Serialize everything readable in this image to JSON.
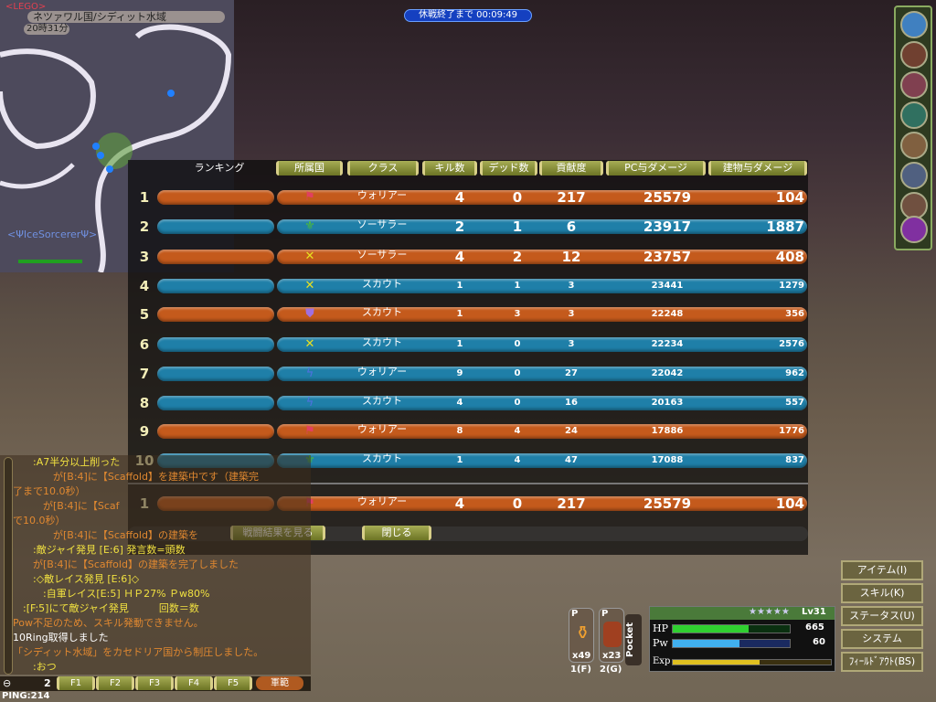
{
  "minimap": {
    "guild": "<LEGO>",
    "location": "ネツァワル国/シディット水域",
    "time": "20時31分",
    "player_label": "<ΨIceSorcererΨ>"
  },
  "timer": "休戦終了まで 00:09:49",
  "ranking": {
    "headers": {
      "rank": "ランキング",
      "nation": "所属国",
      "class": "クラス",
      "kills": "キル数",
      "deaths": "デッド数",
      "contribution": "貢献度",
      "pc_damage": "PC与ダメージ",
      "building_damage": "建物与ダメージ"
    },
    "rows": [
      {
        "rank": "1",
        "team": "orange",
        "nation_icon": "red-flag-icon",
        "nation_color": "#e04060",
        "class": "ウォリアー",
        "kills": "4",
        "deaths": "0",
        "contribution": "217",
        "pc_damage": "25579",
        "building_damage": "104"
      },
      {
        "rank": "2",
        "team": "blue",
        "nation_icon": "green-fleur-icon",
        "nation_color": "#50c030",
        "class": "ソーサラー",
        "kills": "2",
        "deaths": "1",
        "contribution": "6",
        "pc_damage": "23917",
        "building_damage": "1887"
      },
      {
        "rank": "3",
        "team": "orange",
        "nation_icon": "yellow-cross-icon",
        "nation_color": "#e8e020",
        "class": "ソーサラー",
        "kills": "4",
        "deaths": "2",
        "contribution": "12",
        "pc_damage": "23757",
        "building_damage": "408"
      },
      {
        "rank": "4",
        "team": "blue",
        "nation_icon": "yellow-cross-icon",
        "nation_color": "#e8e020",
        "class": "スカウト",
        "kills": "1",
        "deaths": "1",
        "contribution": "3",
        "pc_damage": "23441",
        "building_damage": "1279"
      },
      {
        "rank": "5",
        "team": "orange",
        "nation_icon": "purple-shield-icon",
        "nation_color": "#a070e0",
        "class": "スカウト",
        "kills": "1",
        "deaths": "3",
        "contribution": "3",
        "pc_damage": "22248",
        "building_damage": "356"
      },
      {
        "rank": "6",
        "team": "blue",
        "nation_icon": "yellow-cross-icon",
        "nation_color": "#e8e020",
        "class": "スカウト",
        "kills": "1",
        "deaths": "0",
        "contribution": "3",
        "pc_damage": "22234",
        "building_damage": "2576"
      },
      {
        "rank": "7",
        "team": "blue",
        "nation_icon": "blue-bolt-icon",
        "nation_color": "#5070e0",
        "class": "ウォリアー",
        "kills": "9",
        "deaths": "0",
        "contribution": "27",
        "pc_damage": "22042",
        "building_damage": "962"
      },
      {
        "rank": "8",
        "team": "blue",
        "nation_icon": "blue-bolt-icon",
        "nation_color": "#5070e0",
        "class": "スカウト",
        "kills": "4",
        "deaths": "0",
        "contribution": "16",
        "pc_damage": "20163",
        "building_damage": "557"
      },
      {
        "rank": "9",
        "team": "orange",
        "nation_icon": "red-flag-icon",
        "nation_color": "#e04060",
        "class": "ウォリアー",
        "kills": "8",
        "deaths": "4",
        "contribution": "24",
        "pc_damage": "17886",
        "building_damage": "1776"
      },
      {
        "rank": "10",
        "team": "blue",
        "nation_icon": "green-fleur-icon",
        "nation_color": "#50c030",
        "class": "スカウト",
        "kills": "1",
        "deaths": "4",
        "contribution": "47",
        "pc_damage": "17088",
        "building_damage": "837"
      }
    ],
    "self": {
      "rank": "1",
      "team": "orange",
      "nation_icon": "red-flag-icon",
      "nation_color": "#e04060",
      "class": "ウォリアー",
      "kills": "4",
      "deaths": "0",
      "contribution": "217",
      "pc_damage": "25579",
      "building_damage": "104"
    },
    "view_results_label": "戦闘結果を見る",
    "close_label": "閉じる"
  },
  "chat": [
    {
      "text": "　　:A7半分以上削った",
      "color": "y"
    },
    {
      "text": "　　　　が[B:4]に【Scaffold】を建築中です（建築完",
      "color": "o"
    },
    {
      "text": "了まで10.0秒）",
      "color": "o"
    },
    {
      "text": "　　　が[B:4]に【Scaf",
      "color": "o"
    },
    {
      "text": "で10.0秒）",
      "color": "o"
    },
    {
      "text": "　　　　が[B:4]に【Scaffold】の建築を",
      "color": "o"
    },
    {
      "text": "　　:敵ジャイ発見 [E:6] 発言数=頭数",
      "color": "y"
    },
    {
      "text": "　　が[B:4]に【Scaffold】の建築を完了しました",
      "color": "o"
    },
    {
      "text": "　　:◇敵レイス発見 [E:6]◇",
      "color": "y"
    },
    {
      "text": "　　　:自軍レイス[E:5] ＨＰ27% Ｐw80%",
      "color": "y"
    },
    {
      "text": "　:[F:5]にて敵ジャイ発見　　　回数＝数",
      "color": "y"
    },
    {
      "text": "Pow不足のため、スキル発動できません。",
      "color": "o"
    },
    {
      "text": "10Ring取得しました",
      "color": "w"
    },
    {
      "text": "「シディット水域」をカセドリア国から制圧しました。",
      "color": "o"
    },
    {
      "text": "　　:おつ",
      "color": "y"
    }
  ],
  "hotbar": {
    "page": "2",
    "keys": [
      "F1",
      "F2",
      "F3",
      "F4",
      "F5"
    ],
    "army_label": "軍範"
  },
  "ping": "PING:214",
  "items": [
    {
      "count": "x49",
      "key": "1(F)",
      "badge": "P"
    },
    {
      "count": "x23",
      "key": "2(G)",
      "badge": "P"
    }
  ],
  "pocket_label": "Pocket",
  "status": {
    "level": "Lv31",
    "stars": "★★★★★",
    "hp_label": "HP",
    "hp": "665",
    "hp_fill": 0.65,
    "pw_label": "Pw",
    "pw": "60",
    "pw_fill": 0.57,
    "exp_label": "Exp",
    "exp_fill": 0.55
  },
  "menu": [
    "アイテム(I)",
    "スキル(K)",
    "ステータス(U)",
    "システム",
    "ﾌｨｰﾙﾄﾞｱｳﾄ(BS)"
  ]
}
